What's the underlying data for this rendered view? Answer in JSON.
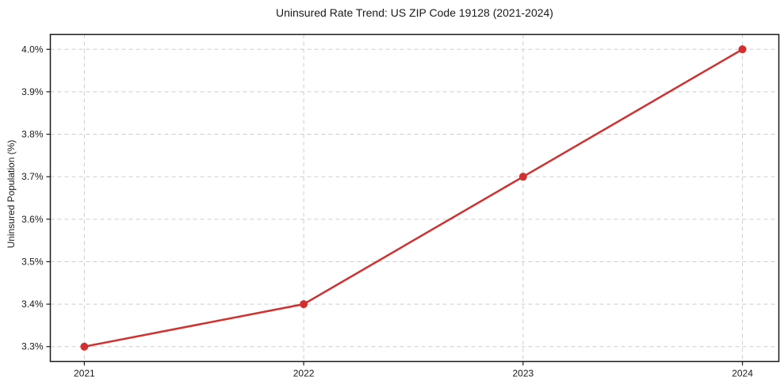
{
  "chart_data": {
    "type": "line",
    "title": "Uninsured Rate Trend: US ZIP Code 19128 (2021-2024)",
    "xlabel": "",
    "ylabel": "Uninsured Population (%)",
    "x": [
      2021,
      2022,
      2023,
      2024
    ],
    "values": [
      3.3,
      3.4,
      3.7,
      4.0
    ],
    "x_tick_labels": [
      "2021",
      "2022",
      "2023",
      "2024"
    ],
    "y_ticks": [
      3.3,
      3.4,
      3.5,
      3.6,
      3.7,
      3.8,
      3.9,
      4.0
    ],
    "y_tick_labels": [
      "3.3%",
      "3.4%",
      "3.5%",
      "3.6%",
      "3.7%",
      "3.8%",
      "3.9%",
      "4.0%"
    ],
    "xlim": [
      2020.845,
      2024.166
    ],
    "ylim": [
      3.265,
      4.035
    ],
    "grid": true,
    "grid_style": "dashed",
    "legend_position": "none",
    "marker": "circle",
    "colors": {
      "line": "#d32f2f",
      "marker": "#d32f2f",
      "grid": "#cdcdcd",
      "spine": "#1a1a1a",
      "text": "#1a1a1a",
      "background": "#ffffff"
    }
  }
}
